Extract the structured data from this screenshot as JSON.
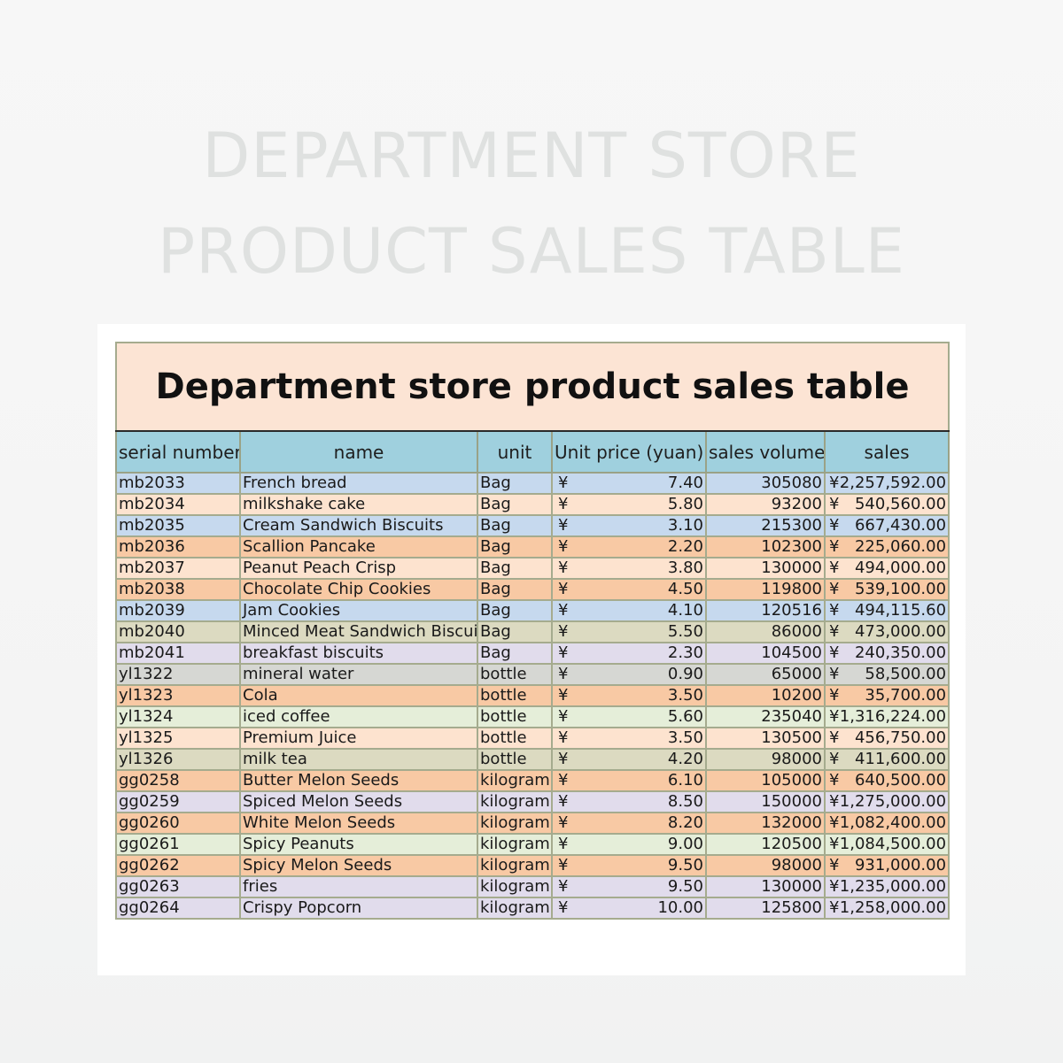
{
  "hero": {
    "line1": "DEPARTMENT STORE",
    "line2": "PRODUCT SALES TABLE"
  },
  "sheet": {
    "title": "Department store product sales table",
    "currency_symbol": "¥",
    "columns": [
      "serial number",
      "name",
      "unit",
      "Unit price (yuan)",
      "sales volume",
      "sales"
    ],
    "rows": [
      {
        "serial": "mb2033",
        "name": "French bread",
        "unit": "Bag",
        "price": "7.40",
        "volume": "305080",
        "sales": "2,257,592.00",
        "color": "blue"
      },
      {
        "serial": "mb2034",
        "name": "milkshake cake",
        "unit": "Bag",
        "price": "5.80",
        "volume": "93200",
        "sales": "540,560.00",
        "color": "peach"
      },
      {
        "serial": "mb2035",
        "name": "Cream Sandwich Biscuits",
        "unit": "Bag",
        "price": "3.10",
        "volume": "215300",
        "sales": "667,430.00",
        "color": "blue"
      },
      {
        "serial": "mb2036",
        "name": "Scallion Pancake",
        "unit": "Bag",
        "price": "2.20",
        "volume": "102300",
        "sales": "225,060.00",
        "color": "orange"
      },
      {
        "serial": "mb2037",
        "name": "Peanut Peach Crisp",
        "unit": "Bag",
        "price": "3.80",
        "volume": "130000",
        "sales": "494,000.00",
        "color": "peach"
      },
      {
        "serial": "mb2038",
        "name": "Chocolate Chip Cookies",
        "unit": "Bag",
        "price": "4.50",
        "volume": "119800",
        "sales": "539,100.00",
        "color": "orange"
      },
      {
        "serial": "mb2039",
        "name": "Jam Cookies",
        "unit": "Bag",
        "price": "4.10",
        "volume": "120516",
        "sales": "494,115.60",
        "color": "blue"
      },
      {
        "serial": "mb2040",
        "name": "Minced Meat Sandwich Biscuit",
        "unit": "Bag",
        "price": "5.50",
        "volume": "86000",
        "sales": "473,000.00",
        "color": "olive"
      },
      {
        "serial": "mb2041",
        "name": "breakfast biscuits",
        "unit": "Bag",
        "price": "2.30",
        "volume": "104500",
        "sales": "240,350.00",
        "color": "lav"
      },
      {
        "serial": "yl1322",
        "name": "mineral water",
        "unit": "bottle",
        "price": "0.90",
        "volume": "65000",
        "sales": "58,500.00",
        "color": "gray"
      },
      {
        "serial": "yl1323",
        "name": "Cola",
        "unit": "bottle",
        "price": "3.50",
        "volume": "10200",
        "sales": "35,700.00",
        "color": "orange"
      },
      {
        "serial": "yl1324",
        "name": "iced coffee",
        "unit": "bottle",
        "price": "5.60",
        "volume": "235040",
        "sales": "1,316,224.00",
        "color": "mint"
      },
      {
        "serial": "yl1325",
        "name": "Premium Juice",
        "unit": "bottle",
        "price": "3.50",
        "volume": "130500",
        "sales": "456,750.00",
        "color": "peach"
      },
      {
        "serial": "yl1326",
        "name": "milk tea",
        "unit": "bottle",
        "price": "4.20",
        "volume": "98000",
        "sales": "411,600.00",
        "color": "olive"
      },
      {
        "serial": "gg0258",
        "name": "Butter Melon Seeds",
        "unit": "kilogram",
        "price": "6.10",
        "volume": "105000",
        "sales": "640,500.00",
        "color": "orange"
      },
      {
        "serial": "gg0259",
        "name": "Spiced Melon Seeds",
        "unit": "kilogram",
        "price": "8.50",
        "volume": "150000",
        "sales": "1,275,000.00",
        "color": "lav"
      },
      {
        "serial": "gg0260",
        "name": "White Melon Seeds",
        "unit": "kilogram",
        "price": "8.20",
        "volume": "132000",
        "sales": "1,082,400.00",
        "color": "orange"
      },
      {
        "serial": "gg0261",
        "name": "Spicy Peanuts",
        "unit": "kilogram",
        "price": "9.00",
        "volume": "120500",
        "sales": "1,084,500.00",
        "color": "mint"
      },
      {
        "serial": "gg0262",
        "name": "Spicy Melon Seeds",
        "unit": "kilogram",
        "price": "9.50",
        "volume": "98000",
        "sales": "931,000.00",
        "color": "orange"
      },
      {
        "serial": "gg0263",
        "name": "fries",
        "unit": "kilogram",
        "price": "9.50",
        "volume": "130000",
        "sales": "1,235,000.00",
        "color": "lav"
      },
      {
        "serial": "gg0264",
        "name": "Crispy Popcorn",
        "unit": "kilogram",
        "price": "10.00",
        "volume": "125800",
        "sales": "1,258,000.00",
        "color": "lav"
      }
    ]
  }
}
